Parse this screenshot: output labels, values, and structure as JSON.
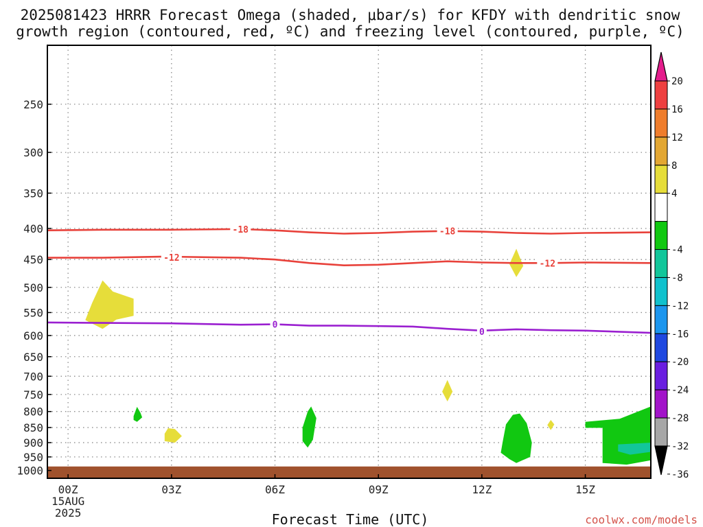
{
  "chart_data": {
    "type": "contour",
    "title_lines": [
      "2025081423 HRRR Forecast Omega (shaded, μbar/s) for KFDY with dendritic snow",
      "growth region (contoured, red, ºC) and freezing level (contoured, purple, ºC)"
    ],
    "xlabel": "Forecast Time (UTC)",
    "x_ticks": [
      {
        "hour": 0,
        "lines": [
          "00Z",
          "15AUG",
          "2025"
        ]
      },
      {
        "hour": 3,
        "lines": [
          "03Z"
        ]
      },
      {
        "hour": 6,
        "lines": [
          "06Z"
        ]
      },
      {
        "hour": 9,
        "lines": [
          "09Z"
        ]
      },
      {
        "hour": 12,
        "lines": [
          "12Z"
        ]
      },
      {
        "hour": 15,
        "lines": [
          "15Z"
        ]
      }
    ],
    "xlim_hours": [
      -0.6,
      16.9
    ],
    "y_axis": {
      "units": "hPa",
      "top": 200,
      "bottom": 1030,
      "tick_values": [
        250,
        300,
        350,
        400,
        450,
        500,
        550,
        600,
        650,
        700,
        750,
        800,
        850,
        900,
        950,
        1000
      ]
    },
    "grid": true,
    "terrain": {
      "color": "#a0522d",
      "top_hPa": 985,
      "note": "below-ground shading"
    },
    "temperature_contours": [
      {
        "name": "-18",
        "color": "#e8413a",
        "label": "-18",
        "points": [
          [
            -0.6,
            403
          ],
          [
            1,
            402
          ],
          [
            3,
            402
          ],
          [
            5,
            401
          ],
          [
            6,
            403
          ],
          [
            7,
            406
          ],
          [
            8,
            408
          ],
          [
            9,
            407
          ],
          [
            10,
            405
          ],
          [
            11,
            404
          ],
          [
            12,
            405
          ],
          [
            13,
            407
          ],
          [
            14,
            408
          ],
          [
            15,
            407
          ],
          [
            16.9,
            406
          ]
        ],
        "label_positions": [
          [
            5,
            401
          ],
          [
            11,
            404
          ]
        ]
      },
      {
        "name": "-12",
        "color": "#e8413a",
        "label": "-12",
        "points": [
          [
            -0.6,
            447
          ],
          [
            1,
            447
          ],
          [
            2.8,
            445
          ],
          [
            5,
            447
          ],
          [
            6,
            450
          ],
          [
            7,
            456
          ],
          [
            8,
            460
          ],
          [
            9,
            459
          ],
          [
            10,
            456
          ],
          [
            11,
            453
          ],
          [
            12,
            455
          ],
          [
            13,
            456
          ],
          [
            14,
            456
          ],
          [
            15,
            455
          ],
          [
            16.9,
            456
          ]
        ],
        "label_positions": [
          [
            3,
            446
          ],
          [
            13.9,
            456
          ]
        ]
      },
      {
        "name": "0",
        "color": "#9a1fd0",
        "label": "0",
        "points": [
          [
            -0.6,
            571
          ],
          [
            1,
            572
          ],
          [
            3,
            573
          ],
          [
            5,
            576
          ],
          [
            6,
            575
          ],
          [
            7,
            578
          ],
          [
            8,
            578
          ],
          [
            9,
            579
          ],
          [
            10,
            580
          ],
          [
            11,
            585
          ],
          [
            12,
            589
          ],
          [
            13,
            586
          ],
          [
            14,
            588
          ],
          [
            15,
            589
          ],
          [
            16.9,
            594
          ]
        ],
        "label_positions": [
          [
            6,
            575
          ],
          [
            12,
            591
          ]
        ]
      }
    ],
    "omega_regions": [
      {
        "value": 6,
        "color": "#e6dd3a",
        "points": [
          [
            0.5,
            566
          ],
          [
            0.7,
            530
          ],
          [
            1.0,
            487
          ],
          [
            1.3,
            508
          ],
          [
            1.9,
            522
          ],
          [
            1.9,
            557
          ],
          [
            1.4,
            565
          ],
          [
            1.0,
            585
          ]
        ]
      },
      {
        "value": 6,
        "color": "#e6dd3a",
        "points": [
          [
            13.0,
            432
          ],
          [
            13.2,
            461
          ],
          [
            13.0,
            481
          ],
          [
            12.8,
            458
          ]
        ]
      },
      {
        "value": 6,
        "color": "#e6dd3a",
        "points": [
          [
            11.0,
            710
          ],
          [
            11.15,
            742
          ],
          [
            11.0,
            770
          ],
          [
            10.85,
            742
          ]
        ]
      },
      {
        "value": 6,
        "color": "#e6dd3a",
        "points": [
          [
            14.0,
            826
          ],
          [
            14.1,
            840
          ],
          [
            14.0,
            858
          ],
          [
            13.9,
            842
          ]
        ]
      },
      {
        "value": 6,
        "color": "#e6dd3a",
        "points": [
          [
            2.8,
            870
          ],
          [
            2.9,
            852
          ],
          [
            3.1,
            855
          ],
          [
            3.3,
            878
          ],
          [
            3.1,
            900
          ],
          [
            2.8,
            895
          ]
        ]
      },
      {
        "value": -6,
        "color": "#11c811",
        "points": [
          [
            1.9,
            814
          ],
          [
            2.0,
            786
          ],
          [
            2.1,
            804
          ],
          [
            2.15,
            818
          ],
          [
            2.0,
            832
          ],
          [
            1.9,
            826
          ]
        ]
      },
      {
        "value": -6,
        "color": "#11c811",
        "points": [
          [
            6.8,
            850
          ],
          [
            6.95,
            800
          ],
          [
            7.05,
            785
          ],
          [
            7.2,
            820
          ],
          [
            7.1,
            890
          ],
          [
            6.95,
            917
          ],
          [
            6.8,
            895
          ]
        ]
      },
      {
        "value": -6,
        "color": "#11c811",
        "points": [
          [
            12.6,
            900
          ],
          [
            12.7,
            840
          ],
          [
            12.9,
            810
          ],
          [
            13.1,
            806
          ],
          [
            13.3,
            836
          ],
          [
            13.45,
            900
          ],
          [
            13.4,
            950
          ],
          [
            13.0,
            972
          ],
          [
            12.8,
            958
          ],
          [
            12.55,
            935
          ]
        ]
      },
      {
        "value": -6,
        "color": "#11c811",
        "points": [
          [
            15.0,
            832
          ],
          [
            16.0,
            822
          ],
          [
            16.9,
            785
          ],
          [
            16.9,
            962
          ],
          [
            16.2,
            978
          ],
          [
            15.5,
            972
          ],
          [
            15.5,
            900
          ],
          [
            15.5,
            851
          ],
          [
            15.0,
            851
          ]
        ]
      },
      {
        "value": -10,
        "color": "#12c69a",
        "points": [
          [
            15.95,
            906
          ],
          [
            16.9,
            900
          ],
          [
            16.9,
            932
          ],
          [
            16.3,
            942
          ],
          [
            15.95,
            930
          ]
        ]
      }
    ],
    "colorbar": {
      "units": "μbar/s",
      "labels": [
        "20",
        "16",
        "12",
        "8",
        "4",
        "-4",
        "-8",
        "-12",
        "-16",
        "-20",
        "-24",
        "-28",
        "-32",
        "-36"
      ],
      "segments": [
        {
          "from": 20,
          "to": 24,
          "color": "#e41d8c",
          "kind": "arrow-top"
        },
        {
          "from": 16,
          "to": 20,
          "color": "#ee4040"
        },
        {
          "from": 12,
          "to": 16,
          "color": "#ef7d2c"
        },
        {
          "from": 8,
          "to": 12,
          "color": "#e3a733"
        },
        {
          "from": 4,
          "to": 8,
          "color": "#e6dd3a"
        },
        {
          "from": -4,
          "to": 4,
          "color": "#ffffff"
        },
        {
          "from": -8,
          "to": -4,
          "color": "#11c811"
        },
        {
          "from": -12,
          "to": -8,
          "color": "#12c69a"
        },
        {
          "from": -16,
          "to": -12,
          "color": "#10c1cd"
        },
        {
          "from": -20,
          "to": -16,
          "color": "#1c96ee"
        },
        {
          "from": -24,
          "to": -20,
          "color": "#1f48e0"
        },
        {
          "from": -28,
          "to": -24,
          "color": "#6a1ee0"
        },
        {
          "from": -32,
          "to": -28,
          "color": "#a214c9"
        },
        {
          "from": -36,
          "to": -32,
          "color": "#a7a7a7"
        },
        {
          "from": -40,
          "to": -36,
          "color": "#000000",
          "kind": "arrow-bottom"
        }
      ]
    }
  },
  "footer": {
    "brand": "coolwx.com/models"
  }
}
